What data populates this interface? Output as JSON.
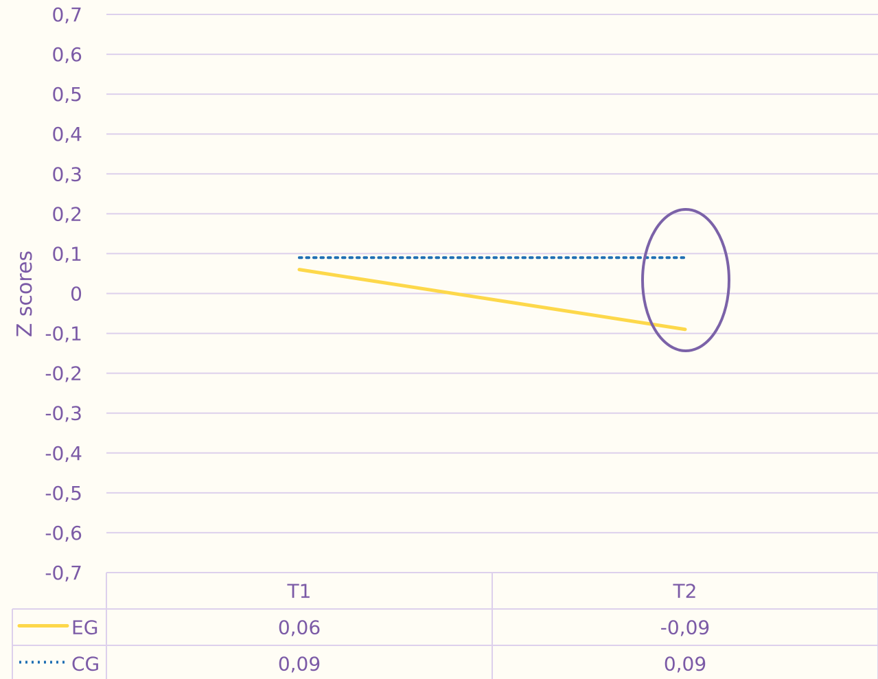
{
  "chart_data": {
    "type": "line",
    "categories": [
      "T1",
      "T2"
    ],
    "series": [
      {
        "name": "EG",
        "values": [
          0.06,
          -0.09
        ],
        "labels": [
          "0,06",
          "-0,09"
        ],
        "color": "#fdd84a",
        "style": "solid"
      },
      {
        "name": "CG",
        "values": [
          0.09,
          0.09
        ],
        "labels": [
          "0,09",
          "0,09"
        ],
        "color": "#1f6fb3",
        "style": "dotted"
      }
    ],
    "ylabel": "Z scores",
    "ylim": [
      -0.7,
      0.7
    ],
    "yticks": [
      "0,7",
      "0,6",
      "0,5",
      "0,4",
      "0,3",
      "0,2",
      "0,1",
      "0",
      "-0,1",
      "-0,2",
      "-0,3",
      "-0,4",
      "-0,5",
      "-0,6",
      "-0,7"
    ],
    "grid": true,
    "data_table": true,
    "annotation": {
      "shape": "ellipse",
      "target": "T2",
      "color": "#7b62a8"
    },
    "colors": {
      "text": "#7b5aa6",
      "grid": "#ddd0ec",
      "background": "#fffdf5"
    }
  }
}
